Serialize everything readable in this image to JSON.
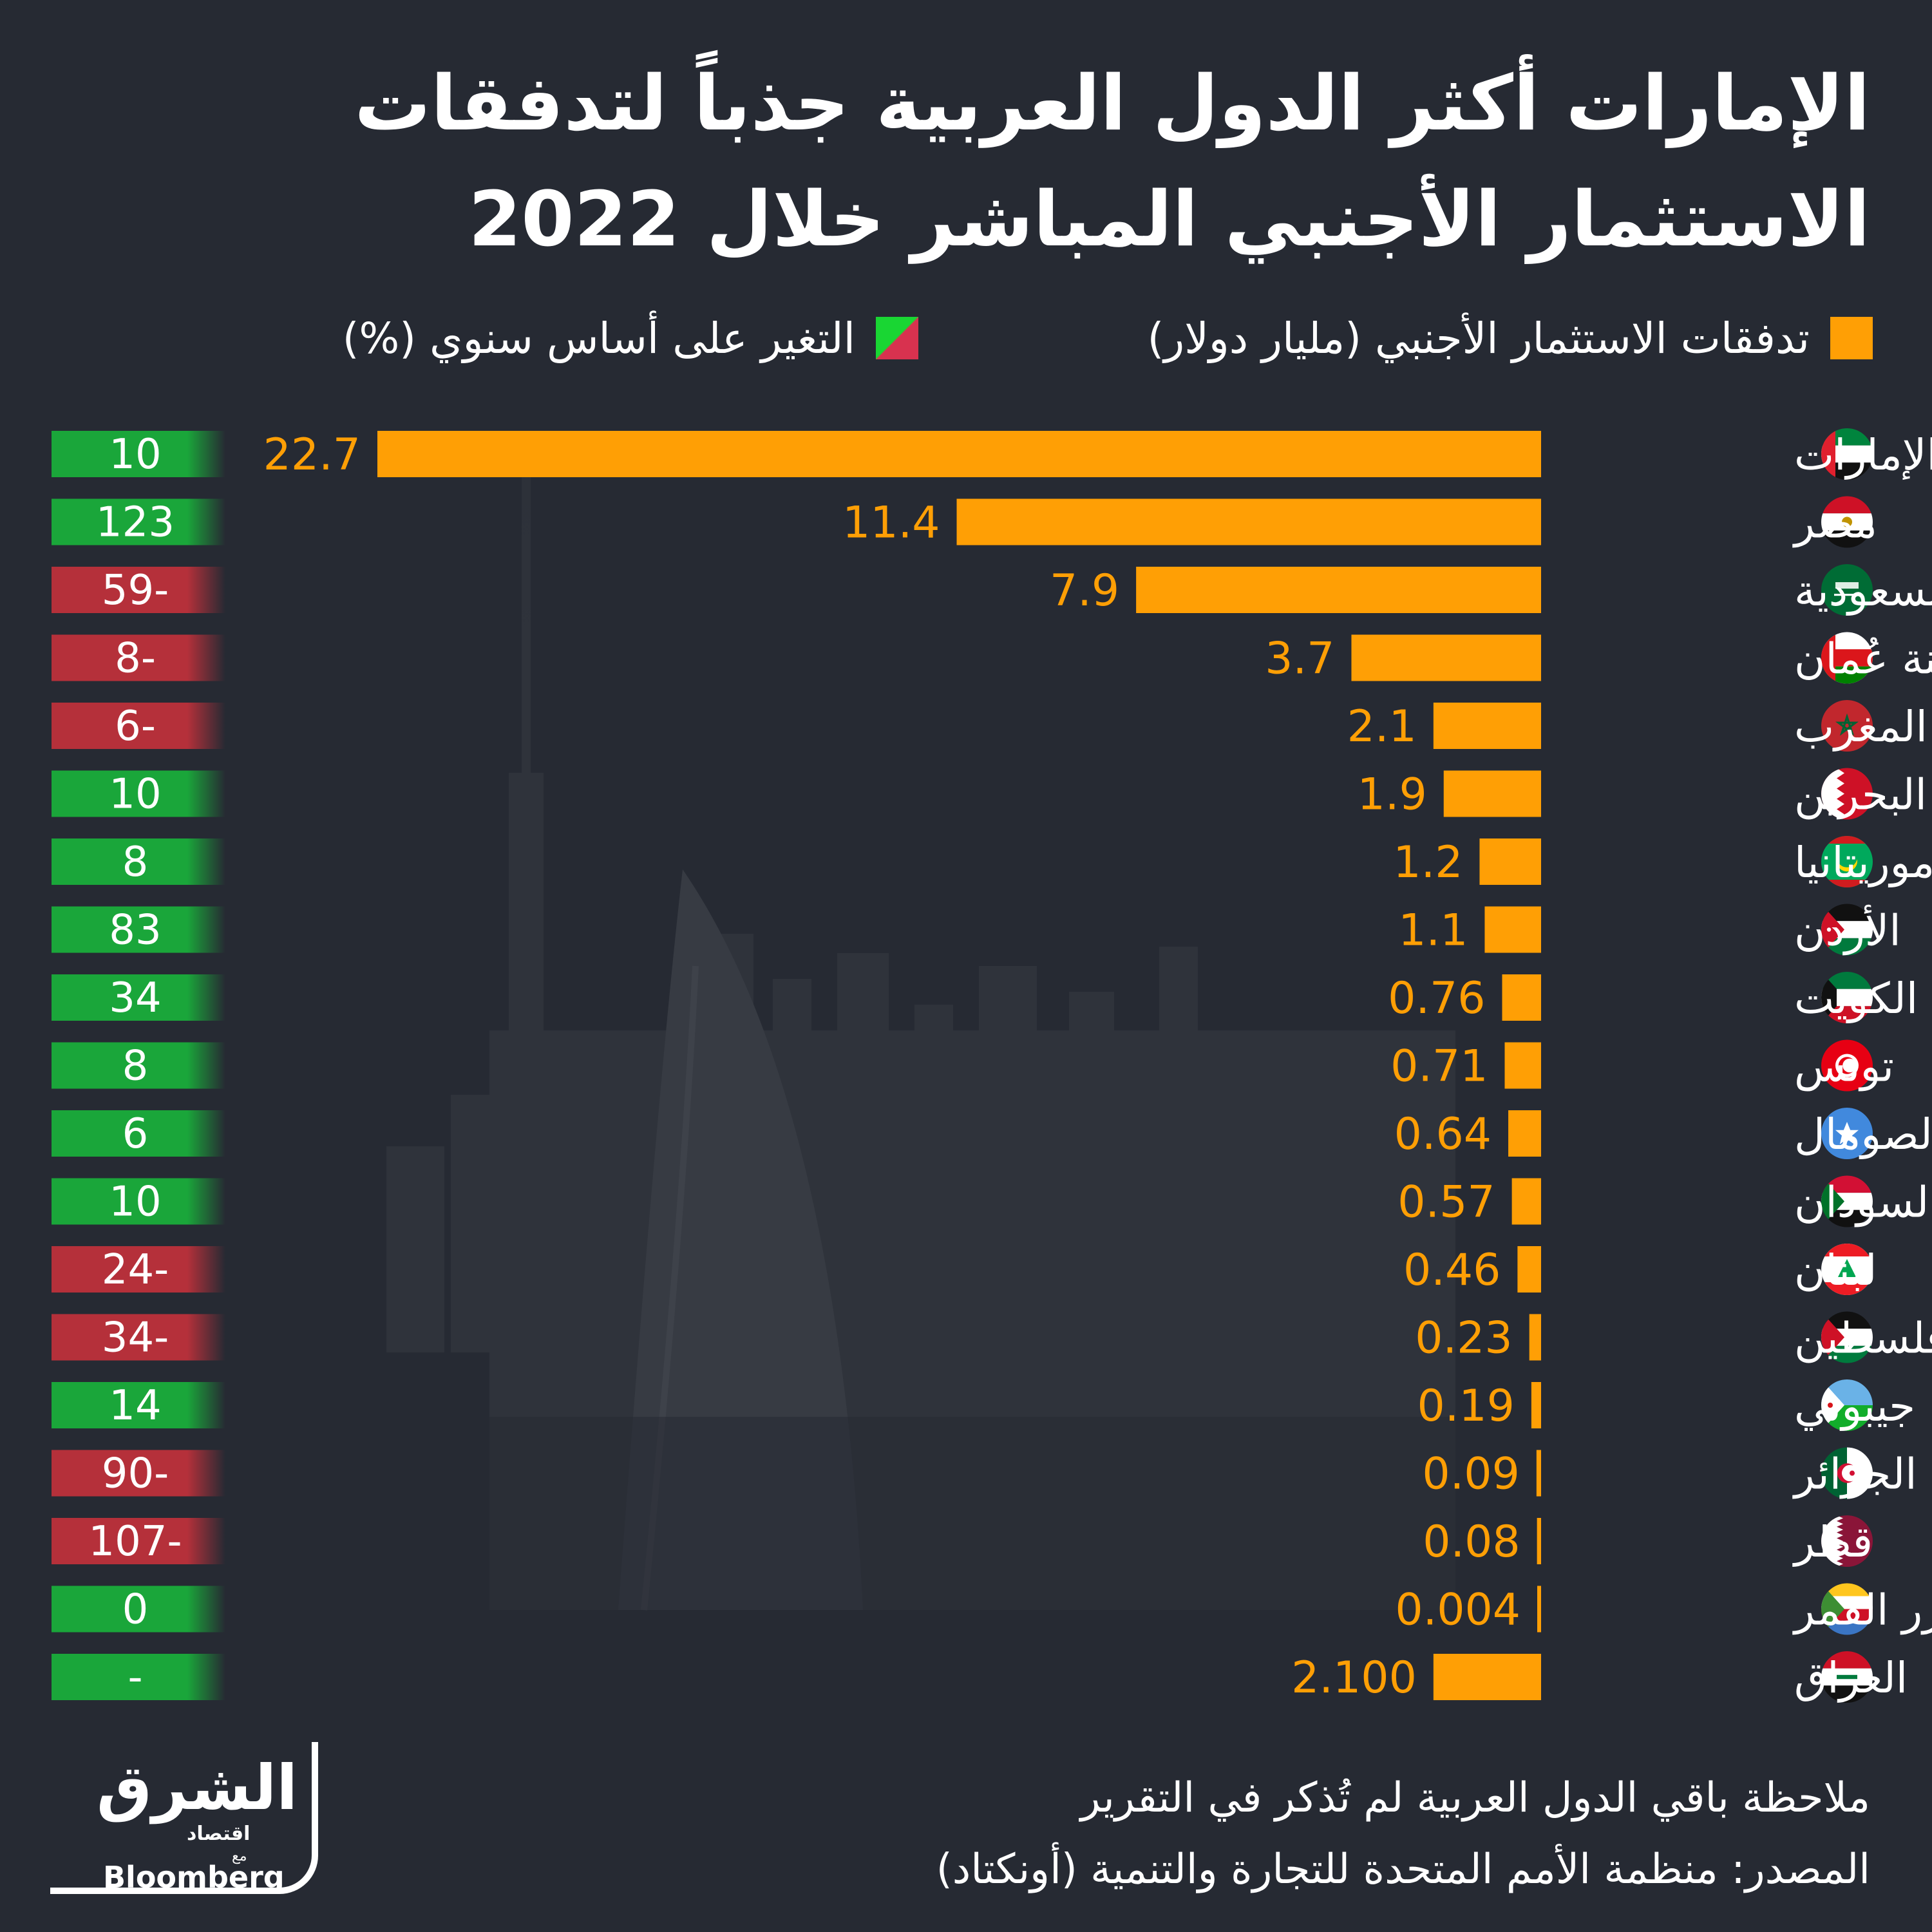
{
  "title": {
    "line1": "الإمارات أكثر الدول العربية جذباً لتدفقات",
    "line2": "الاستثمار الأجنبي المباشر خلال 2022"
  },
  "legend": {
    "inflows": "تدفقات الاستثمار الأجنبي (مليار دولار)",
    "change": "التغير على أساس سنوي (%)"
  },
  "colors": {
    "bar": "#ff9f05",
    "positive": "#1aa63a",
    "negative": "#b5303a",
    "background": "#262a33",
    "label_value": "#ff9f05"
  },
  "chart_data": {
    "type": "bar",
    "orientation": "horizontal",
    "categories": [
      "الإمارات",
      "مصر",
      "السعودية",
      "سلطنة عُمان",
      "المغرب",
      "البحرين",
      "موريتانيا",
      "الأردن",
      "الكويت",
      "تونس",
      "الصومال",
      "السودان",
      "لبنان",
      "فلسطين",
      "جيبوتي",
      "الجزائر",
      "قطر",
      "جزر القمر",
      "العراق"
    ],
    "value_labels": [
      "22.7",
      "11.4",
      "7.9",
      "3.7",
      "2.1",
      "1.9",
      "1.2",
      "1.1",
      "0.76",
      "0.71",
      "0.64",
      "0.57",
      "0.46",
      "0.23",
      "0.19",
      "0.09",
      "0.08",
      "0.004",
      "2.100"
    ],
    "series": [
      {
        "name": "تدفقات الاستثمار الأجنبي (مليار دولار)",
        "values": [
          22.7,
          11.4,
          7.9,
          3.7,
          2.1,
          1.9,
          1.2,
          1.1,
          0.76,
          0.71,
          0.64,
          0.57,
          0.46,
          0.23,
          0.19,
          0.09,
          0.08,
          0.004,
          2.1
        ]
      },
      {
        "name": "التغير على أساس سنوي (%)",
        "labels": [
          "10",
          "123",
          "59-",
          "8-",
          "6-",
          "10",
          "8",
          "83",
          "34",
          "8",
          "6",
          "10",
          "24-",
          "34-",
          "14",
          "90-",
          "107-",
          "0",
          "-"
        ],
        "signs": [
          "pos",
          "pos",
          "neg",
          "neg",
          "neg",
          "pos",
          "pos",
          "pos",
          "pos",
          "pos",
          "pos",
          "pos",
          "neg",
          "neg",
          "pos",
          "neg",
          "neg",
          "pos",
          "pos"
        ]
      }
    ],
    "flags": [
      "uae-flag-icon",
      "egypt-flag-icon",
      "saudi-flag-icon",
      "oman-flag-icon",
      "morocco-flag-icon",
      "bahrain-flag-icon",
      "mauritania-flag-icon",
      "jordan-flag-icon",
      "kuwait-flag-icon",
      "tunisia-flag-icon",
      "somalia-flag-icon",
      "sudan-flag-icon",
      "lebanon-flag-icon",
      "palestine-flag-icon",
      "djibouti-flag-icon",
      "algeria-flag-icon",
      "qatar-flag-icon",
      "comoros-flag-icon",
      "iraq-flag-icon"
    ],
    "xlim": [
      0,
      22.7
    ]
  },
  "footer": {
    "note": "ملاحظة باقي الدول العربية لم تُذكر في التقرير",
    "source": "المصدر: منظمة الأمم المتحدة للتجارة والتنمية (أونكتاد)"
  },
  "logo": {
    "main": "الشرق",
    "sub": "اقتصاد",
    "with": "مع",
    "partner": "Bloomberg"
  }
}
